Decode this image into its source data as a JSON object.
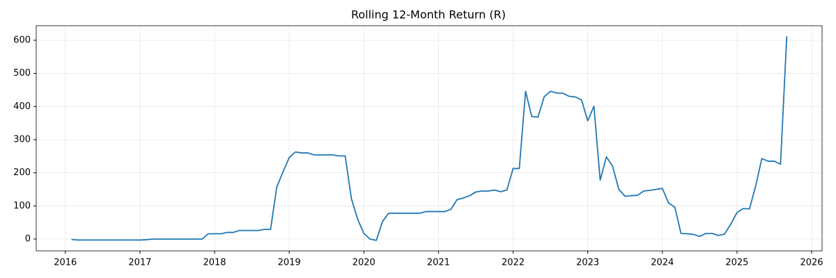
{
  "chart_data": {
    "type": "line",
    "title": "Rolling 12-Month Return (R)",
    "x": [
      2016.083,
      2016.167,
      2016.25,
      2016.333,
      2016.417,
      2016.5,
      2016.583,
      2016.667,
      2016.75,
      2016.833,
      2016.917,
      2017,
      2017.083,
      2017.167,
      2017.25,
      2017.333,
      2017.417,
      2017.5,
      2017.583,
      2017.667,
      2017.75,
      2017.833,
      2017.917,
      2018,
      2018.083,
      2018.167,
      2018.25,
      2018.333,
      2018.417,
      2018.5,
      2018.583,
      2018.667,
      2018.75,
      2018.833,
      2018.917,
      2019,
      2019.083,
      2019.167,
      2019.25,
      2019.333,
      2019.417,
      2019.5,
      2019.583,
      2019.667,
      2019.75,
      2019.833,
      2019.917,
      2020,
      2020.083,
      2020.167,
      2020.25,
      2020.333,
      2020.417,
      2020.5,
      2020.583,
      2020.667,
      2020.75,
      2020.833,
      2020.917,
      2021,
      2021.083,
      2021.167,
      2021.25,
      2021.333,
      2021.417,
      2021.5,
      2021.583,
      2021.667,
      2021.75,
      2021.833,
      2021.917,
      2022,
      2022.083,
      2022.167,
      2022.25,
      2022.333,
      2022.417,
      2022.5,
      2022.583,
      2022.667,
      2022.75,
      2022.833,
      2022.917,
      2023,
      2023.083,
      2023.167,
      2023.25,
      2023.333,
      2023.417,
      2023.5,
      2023.583,
      2023.667,
      2023.75,
      2023.833,
      2023.917,
      2024,
      2024.083,
      2024.167,
      2024.25,
      2024.333,
      2024.417,
      2024.5,
      2024.583,
      2024.667,
      2024.75,
      2024.833,
      2024.917,
      2025,
      2025.083,
      2025.167,
      2025.25,
      2025.333,
      2025.417,
      2025.5,
      2025.583,
      2025.667
    ],
    "series": [
      {
        "name": "Rolling 12-Month Return",
        "color": "#1f77b4",
        "values": [
          -1,
          -3,
          -3,
          -3,
          -3,
          -3,
          -3,
          -3,
          -3,
          -3,
          -3,
          -3,
          -2,
          0,
          0,
          0,
          0,
          0,
          0,
          0,
          0,
          0,
          16,
          16,
          16,
          20,
          20,
          26,
          26,
          26,
          26,
          29,
          29,
          157,
          203,
          246,
          263,
          260,
          260,
          254,
          254,
          254,
          254,
          251,
          251,
          122,
          60,
          17,
          0,
          -4,
          53,
          78,
          78,
          78,
          78,
          78,
          78,
          83,
          83,
          83,
          83,
          90,
          119,
          124,
          131,
          142,
          145,
          145,
          148,
          143,
          148,
          213,
          213,
          446,
          370,
          368,
          430,
          446,
          441,
          440,
          431,
          429,
          420,
          357,
          401,
          178,
          248,
          220,
          150,
          129,
          131,
          132,
          145,
          147,
          150,
          153,
          109,
          96,
          17,
          16,
          14,
          8,
          17,
          17,
          11,
          15,
          45,
          80,
          92,
          91,
          160,
          243,
          235,
          235,
          226,
          612
        ]
      }
    ],
    "xlim": [
      2015.61,
      2026.14
    ],
    "xticks": [
      2016,
      2017,
      2018,
      2019,
      2020,
      2021,
      2022,
      2023,
      2024,
      2025,
      2026
    ],
    "ylim": [
      -35.7,
      644
    ],
    "yticks": [
      0,
      100,
      200,
      300,
      400,
      500,
      600
    ],
    "grid": true
  }
}
